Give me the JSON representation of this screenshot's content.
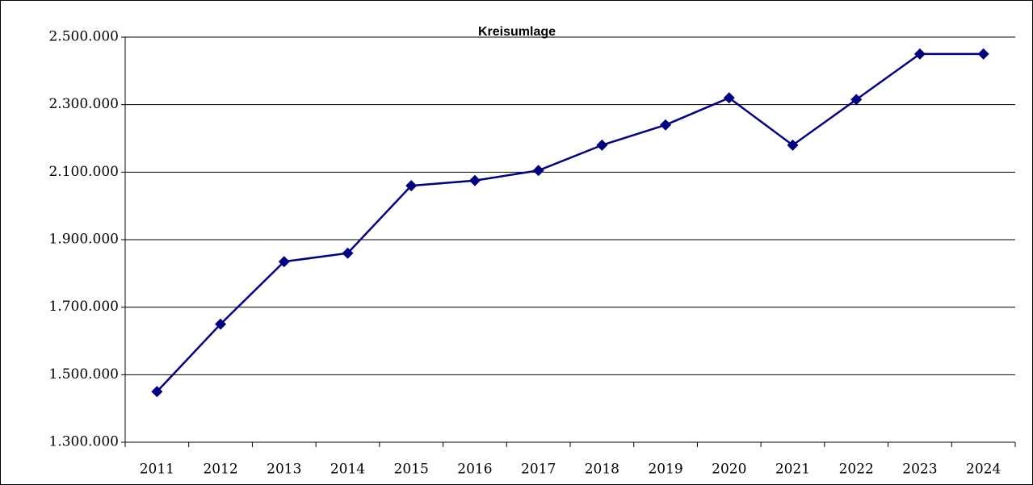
{
  "chart_data": {
    "type": "line",
    "title": "Kreisumlage",
    "categories": [
      "2011",
      "2012",
      "2013",
      "2014",
      "2015",
      "2016",
      "2017",
      "2018",
      "2019",
      "2020",
      "2021",
      "2022",
      "2023",
      "2024"
    ],
    "values": [
      1450000,
      1650000,
      1835000,
      1860000,
      2060000,
      2075000,
      2105000,
      2180000,
      2240000,
      2320000,
      2180000,
      2315000,
      2450000,
      2450000
    ],
    "color": "#000080",
    "ylim": [
      1300000,
      2500000
    ],
    "yticks": [
      {
        "value": 1300000,
        "label": "1.300.000"
      },
      {
        "value": 1500000,
        "label": "1.500.000"
      },
      {
        "value": 1700000,
        "label": "1.700.000"
      },
      {
        "value": 1900000,
        "label": "1.900.000"
      },
      {
        "value": 2100000,
        "label": "2.100.000"
      },
      {
        "value": 2300000,
        "label": "2.300.000"
      },
      {
        "value": 2500000,
        "label": "2.500.000"
      }
    ],
    "grid": true
  }
}
